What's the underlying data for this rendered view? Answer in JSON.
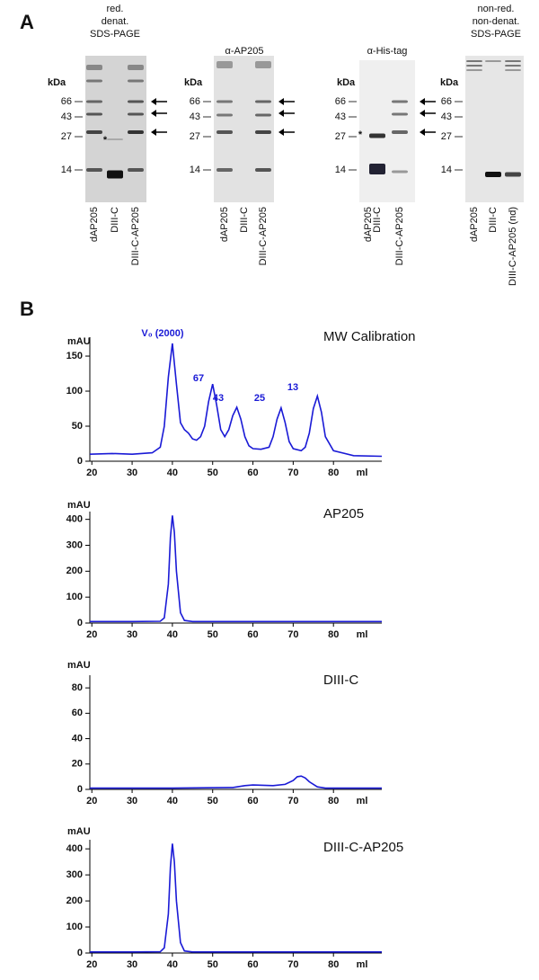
{
  "panel_a": {
    "label": "A",
    "gels": [
      {
        "header": [
          "red.",
          "denat.",
          "SDS-PAGE"
        ],
        "kda": "kDa",
        "markers": [
          "66",
          "43",
          "27",
          "14"
        ],
        "lanes": [
          "dAP205",
          "DIII-C",
          "DIII-C-AP205"
        ],
        "asterisk": "*"
      },
      {
        "header": [
          "α-AP205"
        ],
        "kda": "kDa",
        "markers": [
          "66",
          "43",
          "27",
          "14"
        ],
        "lanes": [
          "dAP205",
          "DIII-C",
          "DIII-C-AP205"
        ]
      },
      {
        "header": [
          "α-His-tag"
        ],
        "kda": "kDa",
        "markers": [
          "66",
          "43",
          "27",
          "14"
        ],
        "lanes": [
          "dAP205",
          "DIII-C",
          "DIII-C-AP205"
        ],
        "asterisk": "*"
      },
      {
        "header": [
          "non-red.",
          "non-denat.",
          "SDS-PAGE"
        ],
        "kda": "kDa",
        "markers": [
          "66",
          "43",
          "27",
          "14"
        ],
        "lanes": [
          "dAP205",
          "DIII-C",
          "DIII-C-AP205 (nd)"
        ]
      }
    ]
  },
  "panel_b": {
    "label": "B"
  },
  "chart_data": [
    {
      "type": "line",
      "title": "MW Calibration",
      "y_label": "mAU",
      "x_label": "ml",
      "x": [
        19.5,
        25,
        30,
        35,
        37,
        38,
        39,
        40,
        41,
        42,
        43,
        44,
        45,
        46,
        47,
        48,
        49,
        50,
        51,
        52,
        53,
        54,
        55,
        56,
        57,
        58,
        59,
        60,
        62,
        64,
        65,
        66,
        67,
        68,
        69,
        70,
        72,
        73,
        74,
        75,
        76,
        77,
        78,
        80,
        85,
        92
      ],
      "series": [
        {
          "color": "#1a1ad6",
          "values": [
            10,
            11,
            10,
            12,
            20,
            50,
            120,
            168,
            110,
            55,
            45,
            40,
            32,
            30,
            35,
            50,
            85,
            110,
            80,
            45,
            35,
            45,
            65,
            77,
            60,
            35,
            22,
            18,
            17,
            20,
            35,
            60,
            76,
            55,
            28,
            18,
            15,
            20,
            40,
            75,
            93,
            70,
            35,
            15,
            8,
            7
          ]
        }
      ],
      "annotations": [
        "V₀ (2000)",
        "67",
        "43",
        "25",
        "13"
      ],
      "xlim": [
        19.5,
        92
      ],
      "ylim": [
        0,
        177
      ],
      "xticks": [
        20,
        30,
        40,
        50,
        60,
        70,
        80
      ],
      "yticks": [
        0,
        50,
        100,
        150
      ]
    },
    {
      "type": "line",
      "title": "AP205",
      "y_label": "mAU",
      "x_label": "ml",
      "x": [
        19.5,
        30,
        37,
        38,
        39,
        39.5,
        40,
        40.5,
        41,
        42,
        43,
        45,
        60,
        92
      ],
      "series": [
        {
          "color": "#1a1ad6",
          "values": [
            6,
            6,
            7,
            20,
            150,
            330,
            415,
            350,
            200,
            40,
            10,
            6,
            6,
            6
          ]
        }
      ],
      "xlim": [
        19.5,
        92
      ],
      "ylim": [
        0,
        430
      ],
      "xticks": [
        20,
        30,
        40,
        50,
        60,
        70,
        80
      ],
      "yticks": [
        0,
        100,
        200,
        300,
        400
      ]
    },
    {
      "type": "line",
      "title": "DIII-C",
      "y_label": "mAU",
      "x_label": "ml",
      "x": [
        19.5,
        40,
        55,
        58,
        60,
        65,
        68,
        70,
        71,
        72,
        73,
        74,
        76,
        78,
        80,
        92
      ],
      "series": [
        {
          "color": "#1a1ad6",
          "values": [
            1,
            1,
            1.5,
            3,
            3.5,
            3,
            4,
            7,
            10,
            10.5,
            9,
            6,
            2,
            1,
            1,
            1
          ]
        }
      ],
      "xlim": [
        19.5,
        92
      ],
      "ylim": [
        0,
        90
      ],
      "xticks": [
        20,
        30,
        40,
        50,
        60,
        70,
        80
      ],
      "yticks": [
        0,
        20,
        40,
        60,
        80
      ]
    },
    {
      "type": "line",
      "title": "DIII-C-AP205",
      "y_label": "mAU",
      "x_label": "ml",
      "x": [
        19.5,
        30,
        37,
        38,
        39,
        39.5,
        40,
        40.5,
        41,
        42,
        43,
        45,
        60,
        92
      ],
      "series": [
        {
          "color": "#1a1ad6",
          "values": [
            4,
            4,
            5,
            20,
            150,
            330,
            420,
            350,
            200,
            40,
            8,
            4,
            4,
            4
          ]
        }
      ],
      "xlim": [
        19.5,
        92
      ],
      "ylim": [
        0,
        435
      ],
      "xticks": [
        20,
        30,
        40,
        50,
        60,
        70,
        80
      ],
      "yticks": [
        0,
        100,
        200,
        300,
        400
      ]
    }
  ]
}
